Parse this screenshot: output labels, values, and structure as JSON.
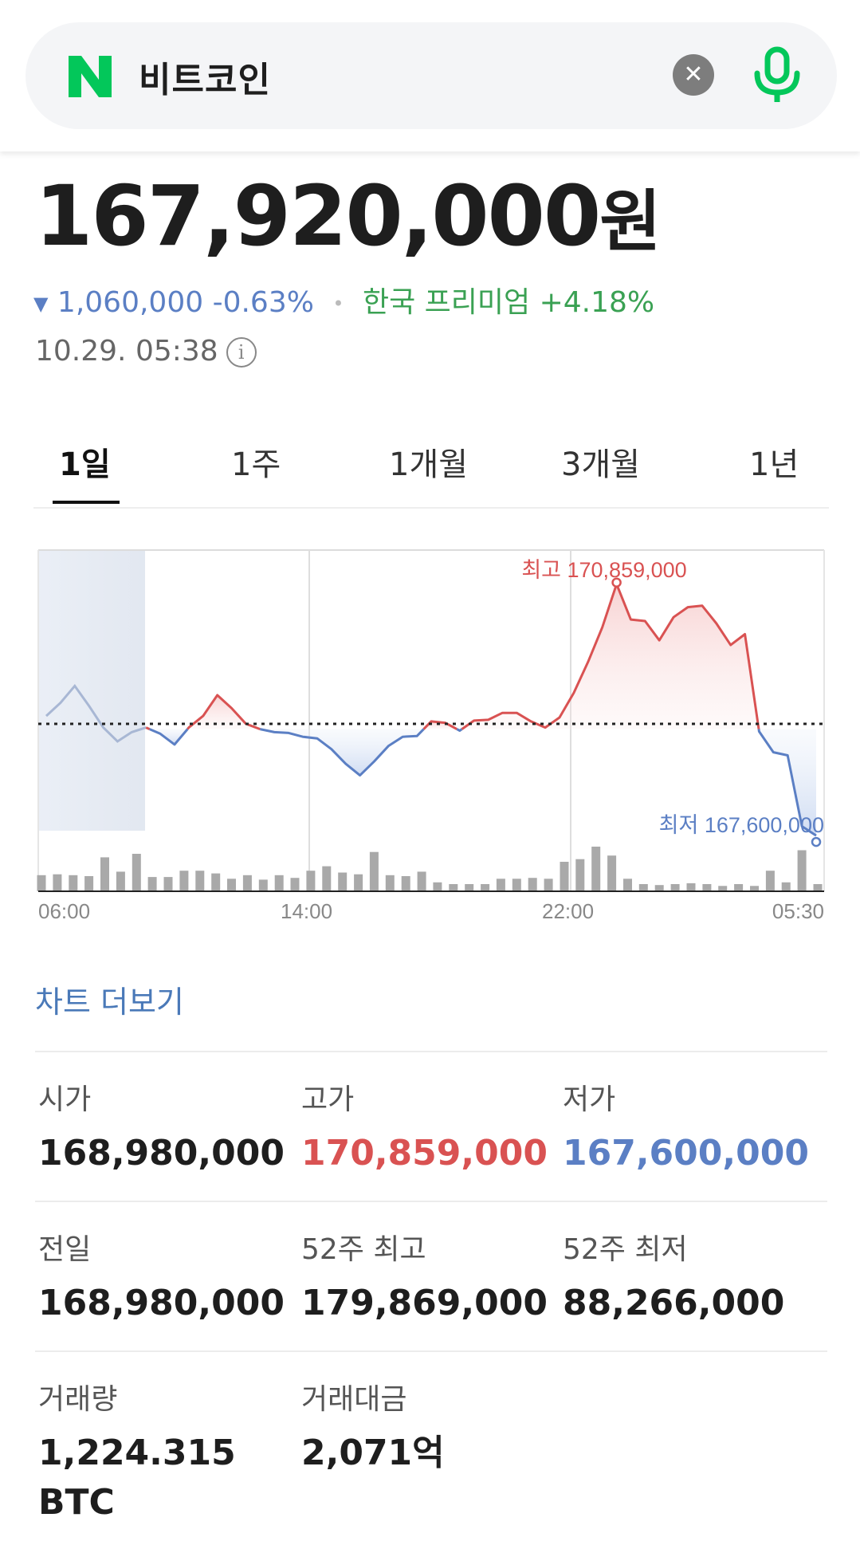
{
  "search": {
    "query": "비트코인"
  },
  "quote": {
    "price": "167,920,000",
    "unit": "원",
    "change_arrow": "▼",
    "change": "1,060,000 -0.63%",
    "separator": "•",
    "premium": "한국 프리미엄 +4.18%",
    "timestamp": "10.29. 05:38",
    "info_glyph": "i"
  },
  "tabs": [
    "1일",
    "1주",
    "1개월",
    "3개월",
    "1년"
  ],
  "chart_data": {
    "type": "line",
    "x_ticks": [
      "06:00",
      "14:00",
      "22:00",
      "05:30"
    ],
    "baseline": 168980000,
    "high_label": "최고 170,859,000",
    "low_label": "최저 167,600,000",
    "prices": [
      169150000,
      169320000,
      169540000,
      169280000,
      169000000,
      168820000,
      168940000,
      169000000,
      168920000,
      168780000,
      169000000,
      169150000,
      169420000,
      169250000,
      169050000,
      168980000,
      168940000,
      168930000,
      168880000,
      168860000,
      168720000,
      168530000,
      168380000,
      168560000,
      168760000,
      168880000,
      168890000,
      169080000,
      169060000,
      168960000,
      169090000,
      169100000,
      169190000,
      169190000,
      169080000,
      169000000,
      169130000,
      169450000,
      169850000,
      170300000,
      170859000,
      170400000,
      170380000,
      170130000,
      170430000,
      170560000,
      170580000,
      170350000,
      170070000,
      170210000,
      168950000,
      168680000,
      168640000,
      167720000,
      167600000
    ],
    "volume": [
      18,
      19,
      18,
      17,
      38,
      22,
      42,
      16,
      16,
      23,
      23,
      20,
      14,
      18,
      13,
      18,
      15,
      23,
      28,
      21,
      19,
      44,
      18,
      17,
      22,
      10,
      8,
      8,
      8,
      14,
      14,
      15,
      14,
      33,
      36,
      50,
      40,
      14,
      8,
      7,
      8,
      9,
      8,
      6,
      8,
      6,
      23,
      10,
      46,
      8
    ]
  },
  "more_link": "차트 더보기",
  "stats": [
    {
      "label": "시가",
      "value": "168,980,000",
      "tone": "normal"
    },
    {
      "label": "고가",
      "value": "170,859,000",
      "tone": "red"
    },
    {
      "label": "저가",
      "value": "167,600,000",
      "tone": "blue"
    },
    {
      "label": "전일",
      "value": "168,980,000",
      "tone": "normal"
    },
    {
      "label": "52주 최고",
      "value": "179,869,000",
      "tone": "normal"
    },
    {
      "label": "52주 최저",
      "value": "88,266,000",
      "tone": "normal"
    },
    {
      "label": "거래량",
      "value": "1,224.315",
      "value2": "BTC",
      "tone": "normal"
    },
    {
      "label": "거래대금",
      "value": "2,071억",
      "tone": "normal"
    }
  ],
  "colors": {
    "up": "#d95252",
    "down": "#5b7fc4",
    "premium": "#3aa153",
    "brand": "#03c75a"
  }
}
